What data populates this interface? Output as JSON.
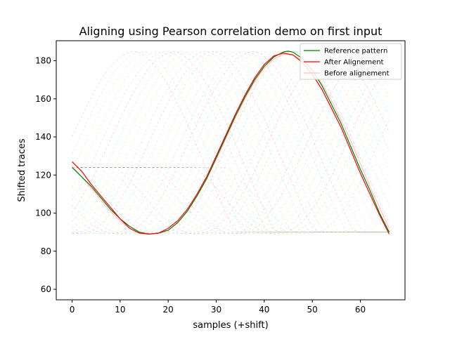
{
  "chart_data": {
    "type": "line",
    "title": "Aligning using Pearson correlation demo on first input",
    "xlabel": "samples (+shift)",
    "ylabel": "Shifted traces",
    "xlim": [
      -3.3,
      69.3
    ],
    "ylim": [
      54.5,
      190.5
    ],
    "xticks": [
      0,
      10,
      20,
      30,
      40,
      50,
      60
    ],
    "yticks": [
      60,
      80,
      100,
      120,
      140,
      160,
      180
    ],
    "grid": false,
    "legend_position": "top-right",
    "colors": {
      "reference": "#008000",
      "after": "#ff0000",
      "before": "#ffc0cb",
      "background_traces": [
        "#ff0000",
        "#00ced1",
        "#ffa500",
        "#9acd32",
        "#1e90ff"
      ]
    },
    "series": [
      {
        "name": "Reference pattern",
        "x": [
          0,
          2,
          4,
          6,
          8,
          10,
          12,
          14,
          16,
          18,
          20,
          22,
          24,
          26,
          28,
          30,
          32,
          34,
          36,
          38,
          40,
          42,
          44,
          45,
          46,
          48,
          50,
          52,
          54,
          56,
          58,
          60,
          62,
          64,
          66
        ],
        "y": [
          124,
          119,
          114,
          108,
          102,
          97,
          93,
          90,
          89,
          89.5,
          91,
          95,
          101,
          109,
          118,
          129,
          140,
          151,
          161,
          170,
          177,
          182,
          184.6,
          185,
          184.5,
          181,
          175,
          167,
          157,
          147,
          135,
          123,
          112,
          100,
          90
        ]
      },
      {
        "name": "After Alignement",
        "x": [
          0,
          2,
          4,
          6,
          8,
          10,
          12,
          14,
          16,
          18,
          20,
          22,
          24,
          26,
          28,
          30,
          32,
          34,
          36,
          38,
          40,
          42,
          44,
          46,
          48,
          50,
          52,
          54,
          56,
          58,
          60,
          62,
          64,
          66
        ],
        "y": [
          127,
          122,
          115,
          109,
          103,
          97,
          92,
          89.5,
          89,
          89.5,
          92,
          96,
          102,
          110,
          119,
          130,
          141,
          152,
          162,
          171,
          178,
          182.5,
          184,
          183,
          179,
          173,
          165,
          155,
          145,
          133,
          121,
          110,
          99,
          89
        ]
      },
      {
        "name": "Before alignement",
        "x": [
          0,
          2,
          4,
          6,
          8,
          10,
          12,
          14,
          16,
          18,
          20,
          22,
          24,
          26,
          28,
          30,
          32,
          34,
          36,
          38,
          40,
          42,
          44,
          46,
          48,
          50,
          52,
          54,
          56,
          58,
          60,
          62,
          64,
          66
        ],
        "y": [
          125,
          119,
          113,
          107,
          101,
          96,
          92,
          90,
          89,
          89.5,
          91,
          95,
          101,
          109,
          118,
          128,
          139,
          150,
          160,
          169,
          176,
          181,
          183.5,
          183,
          180,
          175,
          168,
          159,
          149,
          138,
          126,
          114,
          103,
          92
        ]
      }
    ]
  }
}
